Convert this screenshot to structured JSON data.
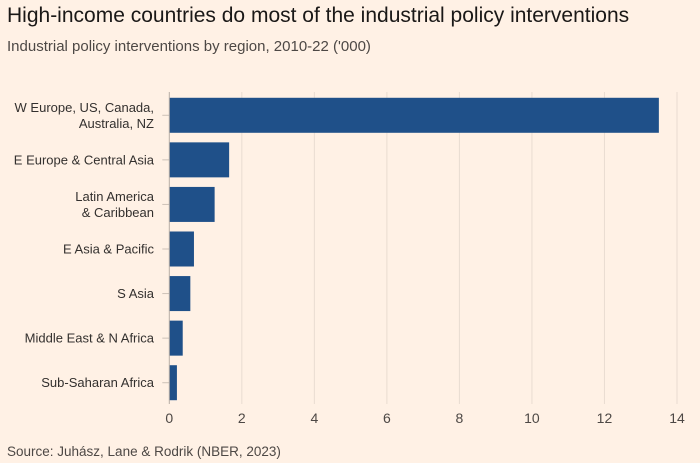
{
  "title": "High-income countries do most of the industrial policy interventions",
  "subtitle": "Industrial policy interventions by region, 2010-22 ('000)",
  "source": "Source: Juhász, Lane & Rodrik (NBER, 2023)",
  "colors": {
    "background": "#fff1e5",
    "bar": "#1f5089"
  },
  "chart_data": {
    "type": "bar",
    "orientation": "horizontal",
    "categories": [
      [
        "W Europe, US, Canada,",
        "Australia, NZ"
      ],
      [
        "E Europe & Central Asia"
      ],
      [
        "Latin America",
        "& Caribbean"
      ],
      [
        "E Asia & Pacific"
      ],
      [
        "S Asia"
      ],
      [
        "Middle East & N Africa"
      ],
      [
        "Sub-Saharan Africa"
      ]
    ],
    "values": [
      13.5,
      1.65,
      1.25,
      0.68,
      0.58,
      0.37,
      0.21
    ],
    "xlim": [
      0,
      14
    ],
    "xticks": [
      0,
      2,
      4,
      6,
      8,
      10,
      12,
      14
    ],
    "grid": "vertical",
    "xlabel": "",
    "ylabel": ""
  }
}
